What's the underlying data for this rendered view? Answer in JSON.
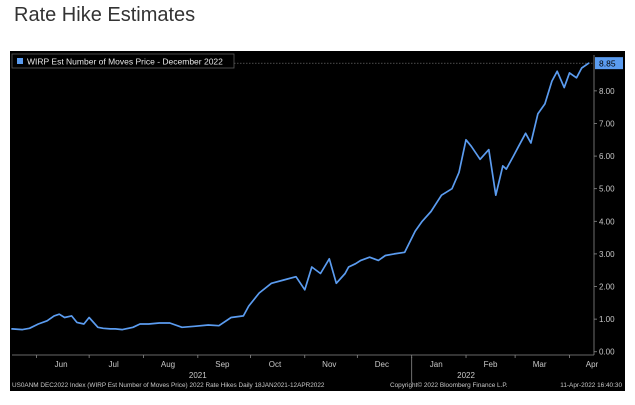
{
  "page": {
    "title": "Rate Hike Estimates"
  },
  "colors": {
    "panel_bg": "#000000",
    "line": "#5b9cf0",
    "text": "#c8c8c8",
    "grid": "#3a3a3a"
  },
  "chart_data": {
    "type": "line",
    "title": "Rate Hike Estimates",
    "legend": "WIRP Est Number of Moves Price - December 2022",
    "legend_position": "top-left",
    "ylim": [
      -0.1,
      9.1
    ],
    "y_ticks": [
      "0.00",
      "1.00",
      "2.00",
      "3.00",
      "4.00",
      "5.00",
      "6.00",
      "7.00",
      "8.00"
    ],
    "x_month_labels": [
      "Jun",
      "Jul",
      "Aug",
      "Sep",
      "Oct",
      "Nov",
      "Dec",
      "Jan",
      "Feb",
      "Mar",
      "Apr"
    ],
    "x_year_labels": [
      "2021",
      "2022"
    ],
    "grid": false,
    "last_value": "8.85",
    "series": [
      {
        "name": "WIRP Est Number of Moves Price - December 2022",
        "x": [
          "2021-05-18",
          "2021-05-24",
          "2021-05-28",
          "2021-06-02",
          "2021-06-07",
          "2021-06-11",
          "2021-06-14",
          "2021-06-17",
          "2021-06-21",
          "2021-06-24",
          "2021-06-28",
          "2021-07-01",
          "2021-07-06",
          "2021-07-09",
          "2021-07-13",
          "2021-07-16",
          "2021-07-20",
          "2021-07-26",
          "2021-07-30",
          "2021-08-04",
          "2021-08-10",
          "2021-08-16",
          "2021-08-23",
          "2021-08-30",
          "2021-09-07",
          "2021-09-13",
          "2021-09-20",
          "2021-09-27",
          "2021-09-30",
          "2021-10-06",
          "2021-10-13",
          "2021-10-20",
          "2021-10-27",
          "2021-11-01",
          "2021-11-05",
          "2021-11-10",
          "2021-11-15",
          "2021-11-19",
          "2021-11-24",
          "2021-11-26",
          "2021-11-30",
          "2021-12-03",
          "2021-12-08",
          "2021-12-13",
          "2021-12-17",
          "2021-12-22",
          "2021-12-28",
          "2022-01-03",
          "2022-01-07",
          "2022-01-12",
          "2022-01-18",
          "2022-01-24",
          "2022-01-28",
          "2022-02-01",
          "2022-02-04",
          "2022-02-09",
          "2022-02-14",
          "2022-02-18",
          "2022-02-22",
          "2022-02-24",
          "2022-02-28",
          "2022-03-03",
          "2022-03-07",
          "2022-03-10",
          "2022-03-14",
          "2022-03-18",
          "2022-03-22",
          "2022-03-25",
          "2022-03-29",
          "2022-04-01",
          "2022-04-05",
          "2022-04-08",
          "2022-04-12"
        ],
        "values": [
          0.7,
          0.68,
          0.72,
          0.85,
          0.95,
          1.1,
          1.15,
          1.05,
          1.1,
          0.9,
          0.85,
          1.05,
          0.75,
          0.72,
          0.7,
          0.7,
          0.68,
          0.75,
          0.85,
          0.85,
          0.88,
          0.88,
          0.75,
          0.78,
          0.82,
          0.8,
          1.05,
          1.1,
          1.4,
          1.8,
          2.1,
          2.2,
          2.3,
          1.9,
          2.6,
          2.4,
          2.85,
          2.1,
          2.4,
          2.6,
          2.7,
          2.8,
          2.9,
          2.8,
          2.95,
          3.0,
          3.05,
          3.7,
          4.0,
          4.3,
          4.8,
          5.0,
          5.5,
          6.5,
          6.3,
          5.9,
          6.2,
          4.8,
          5.7,
          5.6,
          6.0,
          6.3,
          6.7,
          6.4,
          7.3,
          7.6,
          8.3,
          8.6,
          8.1,
          8.55,
          8.4,
          8.7,
          8.85
        ]
      }
    ]
  },
  "footer": {
    "left": "US0ANM DEC2022 Index (WIRP Est Number of Moves Price) 2022 Rate Hikes  Daily 18JAN2021-12APR2022",
    "center": "Copyright© 2022 Bloomberg Finance L.P.",
    "right": "11-Apr-2022 16:40:30"
  }
}
